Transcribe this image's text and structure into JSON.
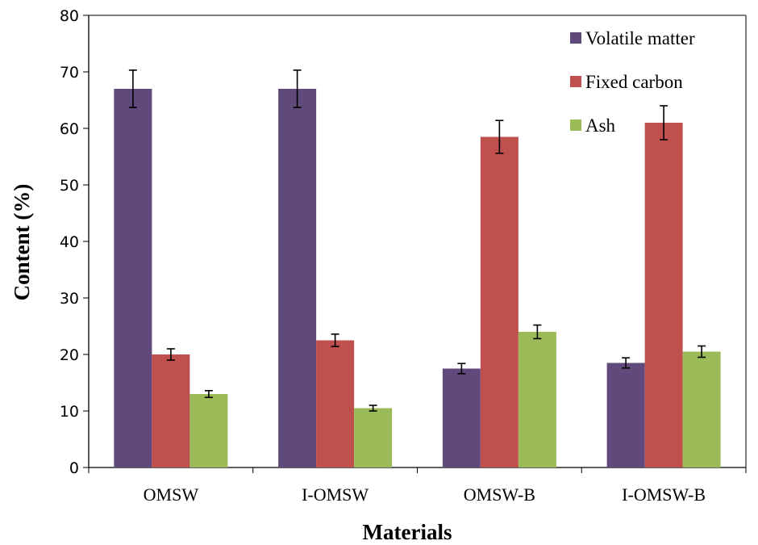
{
  "chart_data": {
    "type": "bar",
    "title": "",
    "xlabel": "Materials",
    "ylabel": "Content (%)",
    "ylim": [
      0,
      80
    ],
    "yticks": [
      0,
      10,
      20,
      30,
      40,
      50,
      60,
      70,
      80
    ],
    "categories": [
      "OMSW",
      "I-OMSW",
      "OMSW-B",
      "I-OMSW-B"
    ],
    "series": [
      {
        "name": "Volatile matter",
        "color": "#604a7b",
        "values": [
          67,
          67,
          17.5,
          18.5
        ],
        "errors": [
          3.3,
          3.3,
          0.9,
          0.9
        ]
      },
      {
        "name": "Fixed carbon",
        "color": "#c0504d",
        "values": [
          20,
          22.5,
          58.5,
          61
        ],
        "errors": [
          1.0,
          1.1,
          2.9,
          3.0
        ]
      },
      {
        "name": "Ash",
        "color": "#9bbb59",
        "values": [
          13,
          10.5,
          24,
          20.5
        ],
        "errors": [
          0.6,
          0.5,
          1.2,
          1.0
        ]
      }
    ],
    "legend_position": "top-right",
    "grid": false
  }
}
